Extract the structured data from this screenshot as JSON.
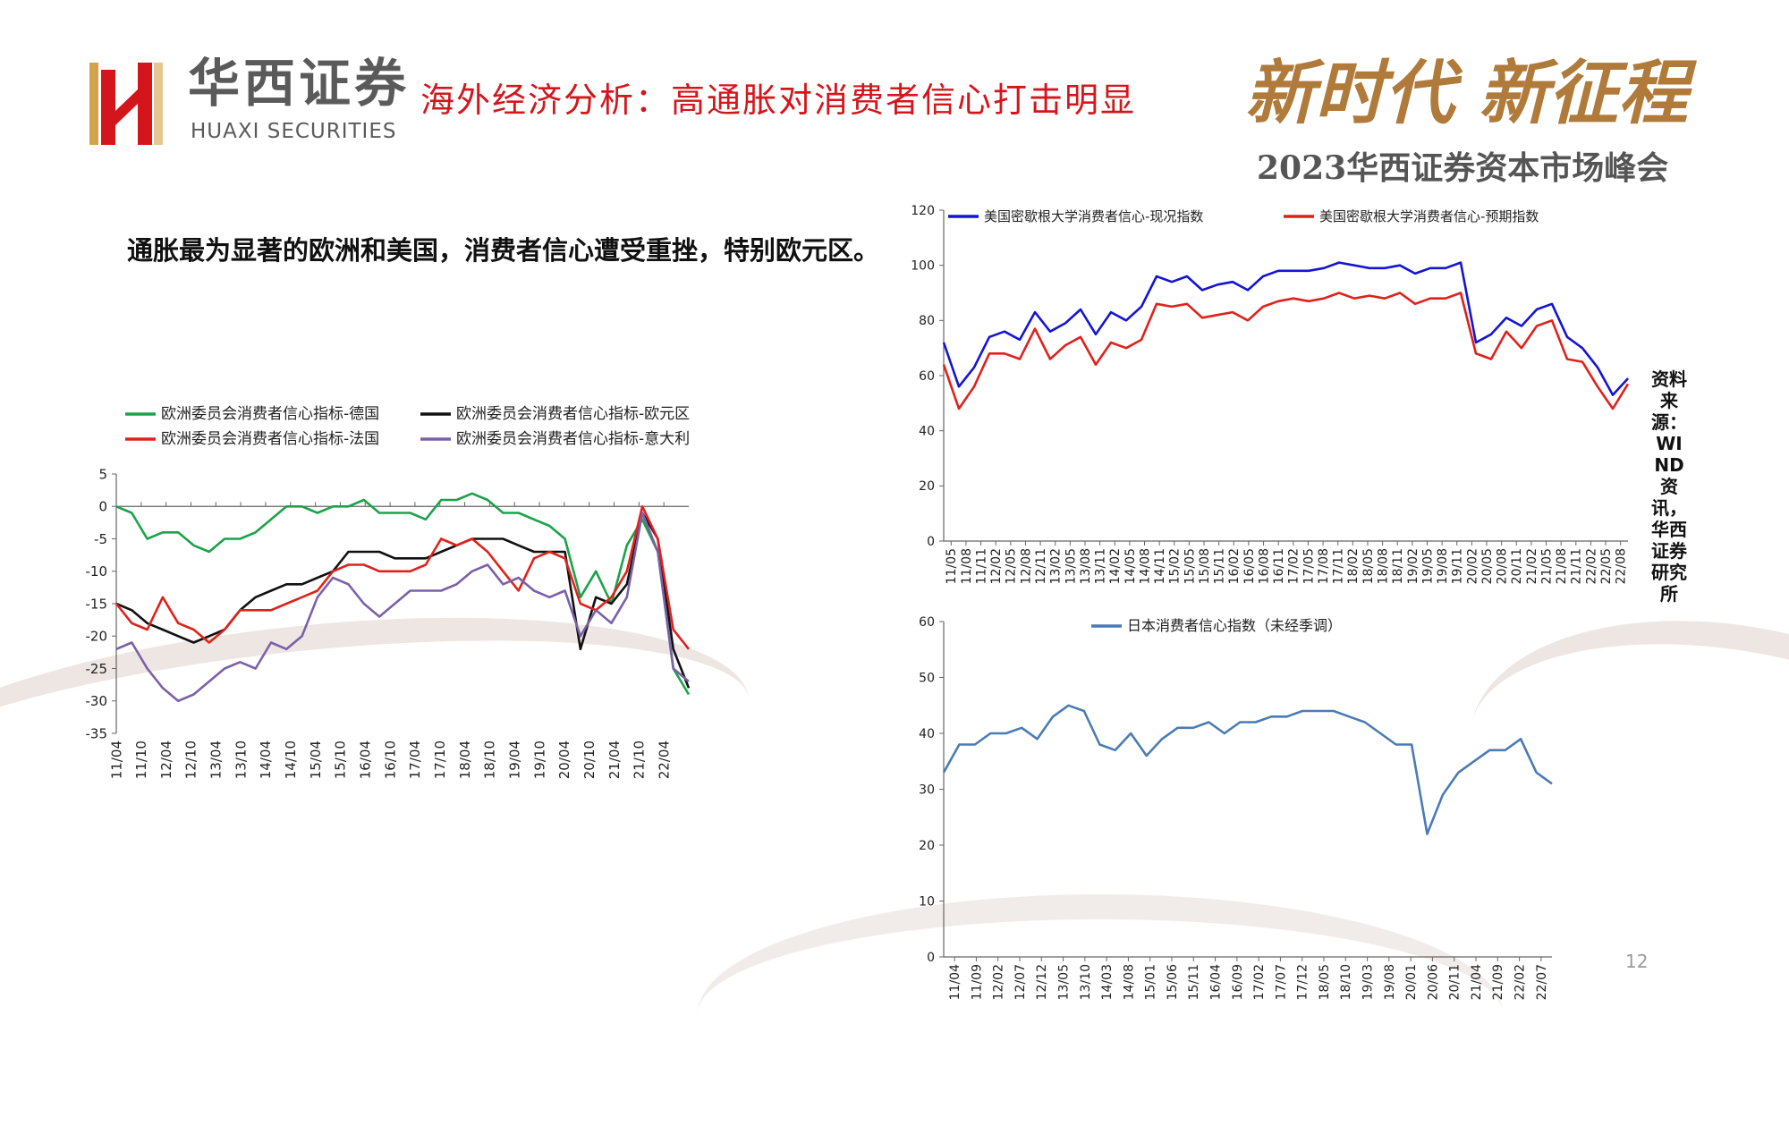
{
  "header": {
    "brand_cn": "华西证券",
    "brand_en": "HUAXI SECURITIES",
    "title": "海外经济分析：高通胀对消费者信心打击明显",
    "slogan": "新时代  新征程",
    "summit": "2023华西证券资本市场峰会"
  },
  "body_text": "通胀最为显著的欧洲和美国，消费者信心遭受重挫，特别欧元区。",
  "source_note": "资料来源：WIND资讯，华西证券研究所",
  "page_number": "12",
  "colors": {
    "accent_red": "#d4161c",
    "gold": "#b07a3a"
  },
  "chart_data": [
    {
      "id": "eu",
      "type": "line",
      "ylim": [
        -35,
        5
      ],
      "yticks": [
        "5",
        "0",
        "-5",
        "-10",
        "-15",
        "-20",
        "-25",
        "-30",
        "-35"
      ],
      "x_tick_labels": [
        "11/04",
        "11/10",
        "12/04",
        "12/10",
        "13/04",
        "13/10",
        "14/04",
        "14/10",
        "15/04",
        "15/10",
        "16/04",
        "16/10",
        "17/04",
        "17/10",
        "18/04",
        "18/10",
        "19/04",
        "19/10",
        "20/04",
        "20/10",
        "21/04",
        "21/10",
        "22/04"
      ],
      "x_period_months": 6,
      "legend_ncol": 2,
      "series": [
        {
          "name": "欧洲委员会消费者信心指标-德国",
          "color": "#1aa34a",
          "values": [
            0,
            -1,
            -5,
            -4,
            -4,
            -6,
            -7,
            -5,
            -5,
            -4,
            -2,
            0,
            0,
            -1,
            0,
            0,
            1,
            -1,
            -1,
            -1,
            -2,
            1,
            1,
            2,
            1,
            -1,
            -1,
            -2,
            -3,
            -5,
            -14,
            -10,
            -15,
            -6,
            -2,
            -7,
            -25,
            -29
          ]
        },
        {
          "name": "欧洲委员会消费者信心指标-欧元区",
          "color": "#111111",
          "values": [
            -15,
            -16,
            -18,
            -19,
            -20,
            -21,
            -20,
            -19,
            -16,
            -14,
            -13,
            -12,
            -12,
            -11,
            -10,
            -7,
            -7,
            -7,
            -8,
            -8,
            -8,
            -7,
            -6,
            -5,
            -5,
            -5,
            -6,
            -7,
            -7,
            -7,
            -22,
            -14,
            -15,
            -12,
            -1,
            -5,
            -22,
            -28
          ]
        },
        {
          "name": "欧洲委员会消费者信心指标-法国",
          "color": "#e0211b",
          "values": [
            -15,
            -18,
            -19,
            -14,
            -18,
            -19,
            -21,
            -19,
            -16,
            -16,
            -16,
            -15,
            -14,
            -13,
            -10,
            -9,
            -9,
            -10,
            -10,
            -10,
            -9,
            -5,
            -6,
            -5,
            -7,
            -10,
            -13,
            -8,
            -7,
            -8,
            -15,
            -16,
            -14,
            -10,
            0,
            -5,
            -19,
            -22
          ]
        },
        {
          "name": "欧洲委员会消费者信心指标-意大利",
          "color": "#7b60a8",
          "values": [
            -22,
            -21,
            -25,
            -28,
            -30,
            -29,
            -27,
            -25,
            -24,
            -25,
            -21,
            -22,
            -20,
            -14,
            -11,
            -12,
            -15,
            -17,
            -15,
            -13,
            -13,
            -13,
            -12,
            -10,
            -9,
            -12,
            -11,
            -13,
            -14,
            -13,
            -20,
            -16,
            -18,
            -14,
            -1,
            -7,
            -25,
            -27
          ]
        }
      ]
    },
    {
      "id": "us",
      "type": "line",
      "ylim": [
        0,
        120
      ],
      "yticks": [
        "120",
        "100",
        "80",
        "60",
        "40",
        "20",
        "0"
      ],
      "x_tick_labels": [
        "11/05",
        "11/08",
        "11/11",
        "12/02",
        "12/05",
        "12/08",
        "12/11",
        "13/02",
        "13/05",
        "13/08",
        "13/11",
        "14/02",
        "14/05",
        "14/08",
        "14/11",
        "15/02",
        "15/05",
        "15/08",
        "15/11",
        "16/02",
        "16/05",
        "16/08",
        "16/11",
        "17/02",
        "17/05",
        "17/08",
        "17/11",
        "18/02",
        "18/05",
        "18/08",
        "18/11",
        "19/02",
        "19/05",
        "19/08",
        "19/11",
        "20/02",
        "20/05",
        "20/08",
        "20/11",
        "21/02",
        "21/05",
        "21/08",
        "21/11",
        "22/02",
        "22/05",
        "22/08"
      ],
      "x_period_months": 3,
      "legend_ncol": 2,
      "series": [
        {
          "name": "美国密歇根大学消费者信心-现况指数",
          "color": "#1414d6",
          "values": [
            72,
            56,
            63,
            74,
            76,
            73,
            83,
            76,
            79,
            84,
            75,
            83,
            80,
            85,
            96,
            94,
            96,
            91,
            93,
            94,
            91,
            96,
            98,
            98,
            98,
            99,
            101,
            100,
            99,
            99,
            100,
            97,
            99,
            99,
            101,
            72,
            75,
            81,
            78,
            84,
            86,
            74,
            70,
            63,
            53,
            59
          ]
        },
        {
          "name": "美国密歇根大学消费者信心-预期指数",
          "color": "#e0211b",
          "values": [
            64,
            48,
            56,
            68,
            68,
            66,
            77,
            66,
            71,
            74,
            64,
            72,
            70,
            73,
            86,
            85,
            86,
            81,
            82,
            83,
            80,
            85,
            87,
            88,
            87,
            88,
            90,
            88,
            89,
            88,
            90,
            86,
            88,
            88,
            90,
            68,
            66,
            76,
            70,
            78,
            80,
            66,
            65,
            56,
            48,
            57
          ]
        }
      ]
    },
    {
      "id": "jp",
      "type": "line",
      "ylim": [
        0,
        60
      ],
      "yticks": [
        "60",
        "50",
        "40",
        "30",
        "20",
        "10",
        "0"
      ],
      "x_tick_labels": [
        "11/04",
        "11/09",
        "12/02",
        "12/07",
        "12/12",
        "13/05",
        "13/10",
        "14/03",
        "14/08",
        "15/01",
        "15/06",
        "15/11",
        "16/04",
        "16/09",
        "17/02",
        "17/07",
        "17/12",
        "18/05",
        "18/10",
        "19/03",
        "19/08",
        "20/01",
        "20/06",
        "20/11",
        "21/04",
        "21/09",
        "22/02",
        "22/07"
      ],
      "x_period_months": 5,
      "legend_ncol": 1,
      "series": [
        {
          "name": "日本消费者信心指数（未经季调）",
          "color": "#4b7bb4",
          "values": [
            33,
            38,
            38,
            40,
            40,
            41,
            39,
            43,
            45,
            44,
            38,
            37,
            40,
            36,
            39,
            41,
            41,
            42,
            40,
            42,
            42,
            43,
            43,
            44,
            44,
            44,
            43,
            42,
            40,
            38,
            38,
            22,
            29,
            33,
            35,
            37,
            37,
            39,
            33,
            31
          ]
        }
      ]
    }
  ]
}
